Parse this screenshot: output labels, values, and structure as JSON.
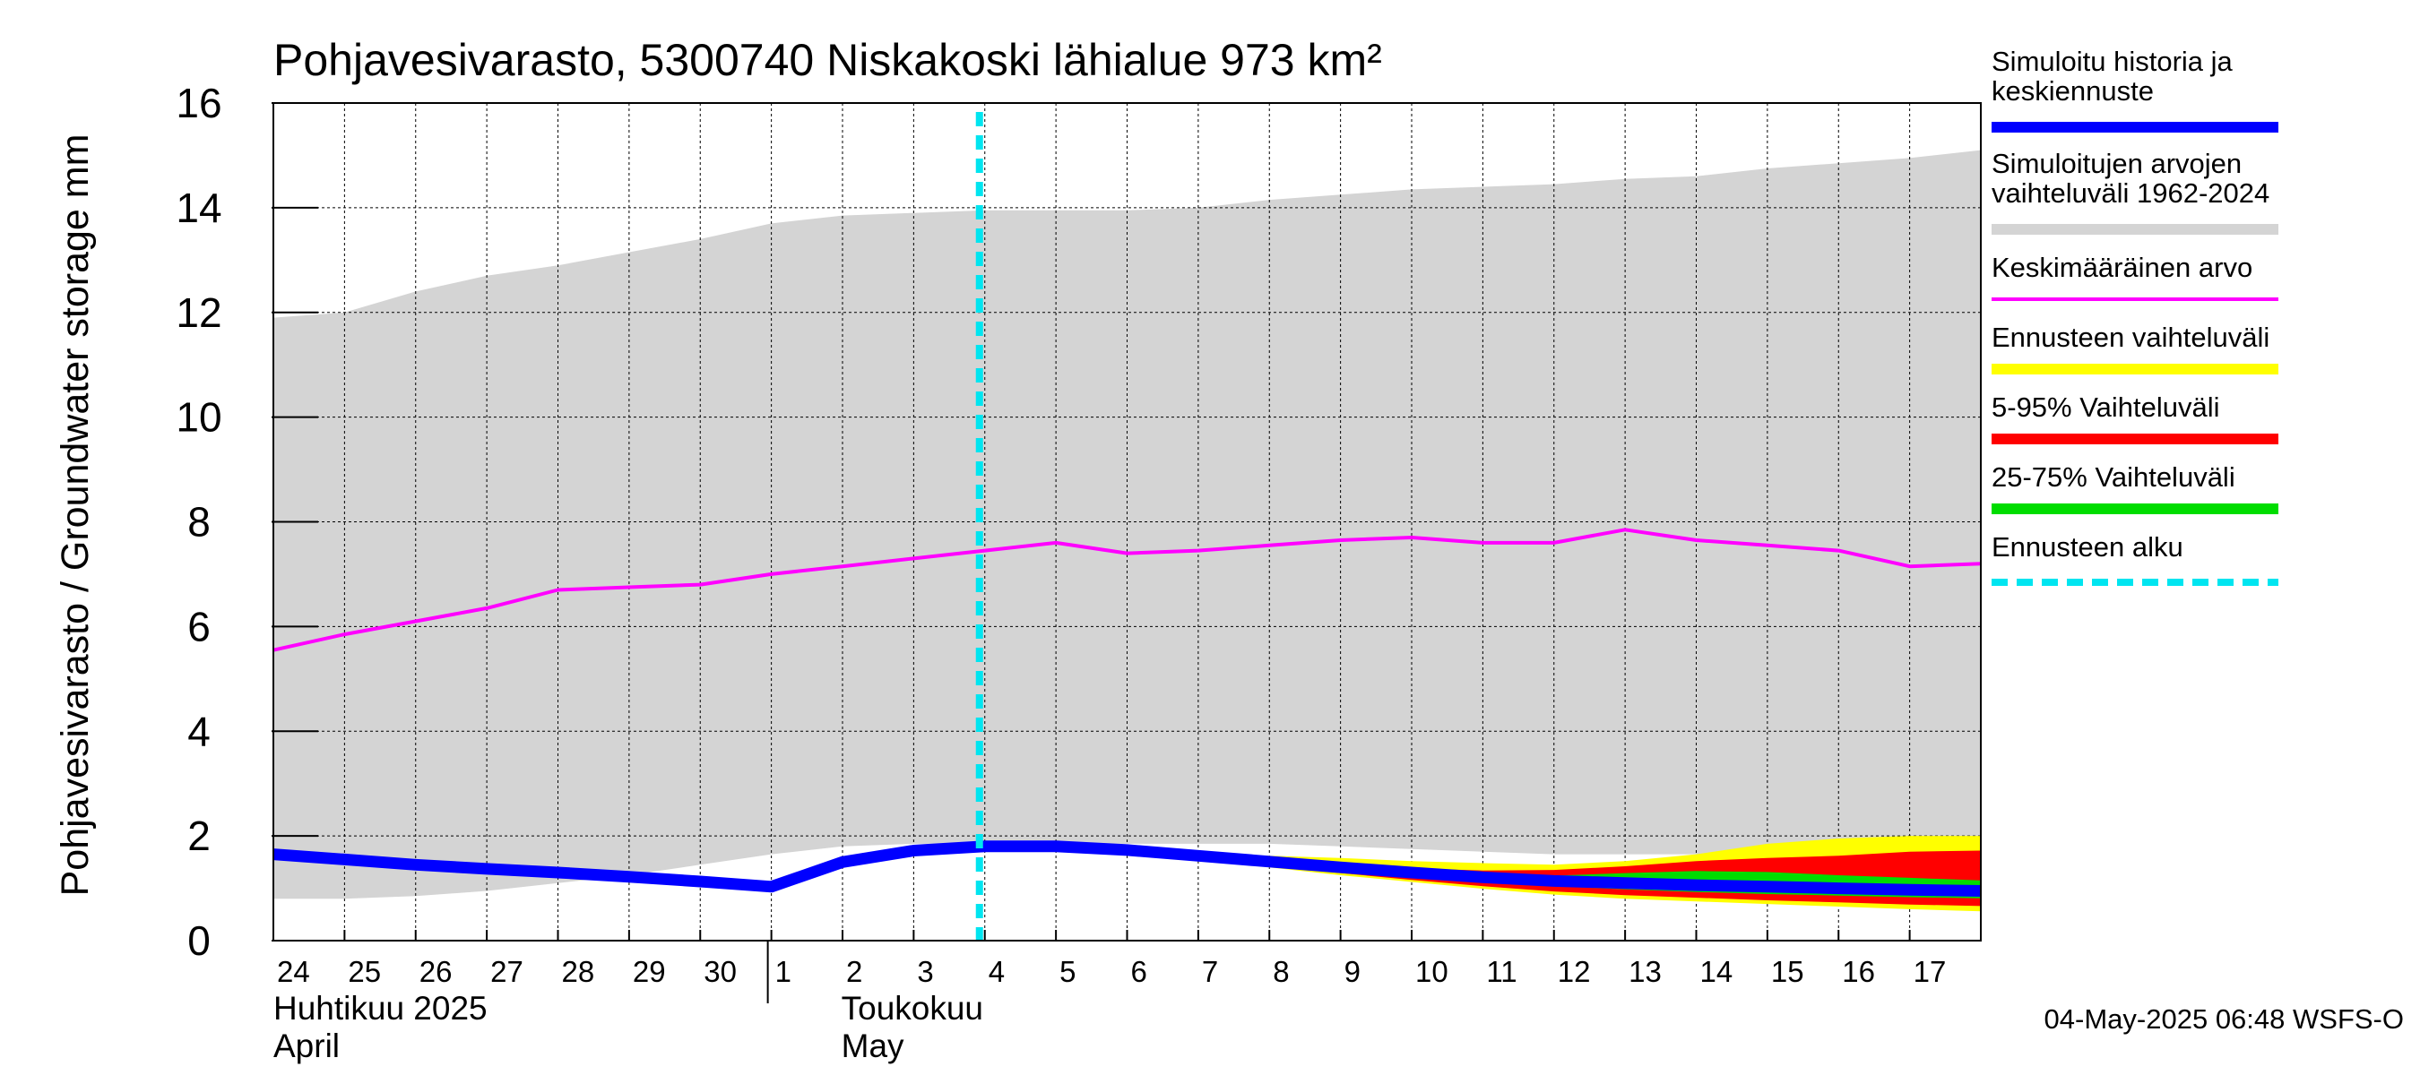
{
  "chart_data": {
    "type": "area",
    "title": "Pohjavesivarasto, 5300740 Niskakoski lähialue 973 km²",
    "ylabel": "Pohjavesivarasto / Groundwater storage   mm",
    "ylim": [
      0,
      16
    ],
    "yticks": [
      0,
      2,
      4,
      6,
      8,
      10,
      12,
      14,
      16
    ],
    "grid": true,
    "x_tick_labels": [
      "24",
      "25",
      "26",
      "27",
      "28",
      "29",
      "30",
      "1",
      "2",
      "3",
      "4",
      "5",
      "6",
      "7",
      "8",
      "9",
      "10",
      "11",
      "12",
      "13",
      "14",
      "15",
      "16",
      "17"
    ],
    "x_dates": [
      "2025-04-24",
      "2025-04-25",
      "2025-04-26",
      "2025-04-27",
      "2025-04-28",
      "2025-04-29",
      "2025-04-30",
      "2025-05-01",
      "2025-05-02",
      "2025-05-03",
      "2025-05-04",
      "2025-05-05",
      "2025-05-06",
      "2025-05-07",
      "2025-05-08",
      "2025-05-09",
      "2025-05-10",
      "2025-05-11",
      "2025-05-12",
      "2025-05-13",
      "2025-05-14",
      "2025-05-15",
      "2025-05-16",
      "2025-05-17"
    ],
    "month_labels": [
      {
        "fi": "Huhtikuu  2025",
        "en": "April",
        "start_date": "2025-04-24"
      },
      {
        "fi": "Toukokuu",
        "en": "May",
        "start_date": "2025-05-01"
      }
    ],
    "forecast_start": "2025-05-04",
    "series": [
      {
        "name": "Simuloitujen arvojen vaihteluväli 1962-2024",
        "kind": "band",
        "color": "#d4d4d4",
        "x": [
          "2025-04-24",
          "2025-04-25",
          "2025-04-26",
          "2025-04-27",
          "2025-04-28",
          "2025-04-29",
          "2025-04-30",
          "2025-05-01",
          "2025-05-02",
          "2025-05-03",
          "2025-05-04",
          "2025-05-05",
          "2025-05-06",
          "2025-05-07",
          "2025-05-08",
          "2025-05-09",
          "2025-05-10",
          "2025-05-11",
          "2025-05-12",
          "2025-05-13",
          "2025-05-14",
          "2025-05-15",
          "2025-05-16",
          "2025-05-17",
          "2025-05-18"
        ],
        "lower": [
          0.8,
          0.8,
          0.85,
          0.95,
          1.1,
          1.25,
          1.45,
          1.65,
          1.8,
          1.85,
          1.85,
          1.85,
          1.85,
          1.85,
          1.85,
          1.8,
          1.75,
          1.7,
          1.65,
          1.65,
          1.65,
          1.7,
          1.75,
          1.8,
          1.85
        ],
        "upper": [
          11.9,
          12.0,
          12.4,
          12.7,
          12.9,
          13.15,
          13.4,
          13.7,
          13.85,
          13.9,
          13.95,
          13.95,
          13.95,
          14.0,
          14.15,
          14.25,
          14.35,
          14.4,
          14.45,
          14.55,
          14.6,
          14.75,
          14.85,
          14.95,
          15.1
        ]
      },
      {
        "name": "Keskimääräinen arvo",
        "kind": "line",
        "color": "#ff00ff",
        "x": [
          "2025-04-24",
          "2025-04-25",
          "2025-04-26",
          "2025-04-27",
          "2025-04-28",
          "2025-04-29",
          "2025-04-30",
          "2025-05-01",
          "2025-05-02",
          "2025-05-03",
          "2025-05-04",
          "2025-05-05",
          "2025-05-06",
          "2025-05-07",
          "2025-05-08",
          "2025-05-09",
          "2025-05-10",
          "2025-05-11",
          "2025-05-12",
          "2025-05-13",
          "2025-05-14",
          "2025-05-15",
          "2025-05-16",
          "2025-05-17",
          "2025-05-18"
        ],
        "y": [
          5.55,
          5.85,
          6.1,
          6.35,
          6.7,
          6.75,
          6.8,
          7.0,
          7.15,
          7.3,
          7.45,
          7.6,
          7.4,
          7.45,
          7.55,
          7.65,
          7.7,
          7.6,
          7.6,
          7.85,
          7.65,
          7.55,
          7.45,
          7.15,
          7.2
        ]
      },
      {
        "name": "Ennusteen vaihteluväli",
        "kind": "band",
        "color": "#ffff00",
        "x": [
          "2025-05-04",
          "2025-05-05",
          "2025-05-06",
          "2025-05-07",
          "2025-05-08",
          "2025-05-09",
          "2025-05-10",
          "2025-05-11",
          "2025-05-12",
          "2025-05-13",
          "2025-05-14",
          "2025-05-15",
          "2025-05-16",
          "2025-05-17",
          "2025-05-18"
        ],
        "lower": [
          1.82,
          1.8,
          1.7,
          1.55,
          1.4,
          1.25,
          1.12,
          0.99,
          0.88,
          0.8,
          0.75,
          0.7,
          0.65,
          0.6,
          0.56
        ],
        "upper": [
          1.82,
          1.82,
          1.75,
          1.68,
          1.62,
          1.58,
          1.52,
          1.48,
          1.45,
          1.52,
          1.65,
          1.85,
          1.95,
          2.0,
          2.0
        ]
      },
      {
        "name": "5-95% Vaihteluväli",
        "kind": "band",
        "color": "#ff0000",
        "x": [
          "2025-05-04",
          "2025-05-05",
          "2025-05-06",
          "2025-05-07",
          "2025-05-08",
          "2025-05-09",
          "2025-05-10",
          "2025-05-11",
          "2025-05-12",
          "2025-05-13",
          "2025-05-14",
          "2025-05-15",
          "2025-05-16",
          "2025-05-17",
          "2025-05-18"
        ],
        "lower": [
          1.82,
          1.8,
          1.71,
          1.57,
          1.43,
          1.29,
          1.16,
          1.04,
          0.94,
          0.87,
          0.82,
          0.77,
          0.73,
          0.69,
          0.66
        ],
        "upper": [
          1.82,
          1.81,
          1.73,
          1.63,
          1.54,
          1.46,
          1.38,
          1.34,
          1.35,
          1.42,
          1.52,
          1.58,
          1.62,
          1.7,
          1.72
        ]
      },
      {
        "name": "25-75% Vaihteluväli",
        "kind": "band",
        "color": "#00dd00",
        "x": [
          "2025-05-04",
          "2025-05-05",
          "2025-05-06",
          "2025-05-07",
          "2025-05-08",
          "2025-05-09",
          "2025-05-10",
          "2025-05-11",
          "2025-05-12",
          "2025-05-13",
          "2025-05-14",
          "2025-05-15",
          "2025-05-16",
          "2025-05-17",
          "2025-05-18"
        ],
        "lower": [
          1.82,
          1.8,
          1.72,
          1.6,
          1.47,
          1.35,
          1.24,
          1.13,
          1.04,
          0.98,
          0.93,
          0.89,
          0.86,
          0.83,
          0.81
        ],
        "upper": [
          1.82,
          1.8,
          1.72,
          1.61,
          1.5,
          1.4,
          1.3,
          1.24,
          1.24,
          1.29,
          1.33,
          1.31,
          1.25,
          1.2,
          1.15
        ]
      },
      {
        "name": "Simuloitu historia ja keskiennuste",
        "kind": "line",
        "color": "#0000ff",
        "x": [
          "2025-04-24",
          "2025-04-25",
          "2025-04-26",
          "2025-04-27",
          "2025-04-28",
          "2025-04-29",
          "2025-04-30",
          "2025-05-01",
          "2025-05-02",
          "2025-05-03",
          "2025-05-04",
          "2025-05-05",
          "2025-05-06",
          "2025-05-07",
          "2025-05-08",
          "2025-05-09",
          "2025-05-10",
          "2025-05-11",
          "2025-05-12",
          "2025-05-13",
          "2025-05-14",
          "2025-05-15",
          "2025-05-16",
          "2025-05-17",
          "2025-05-18"
        ],
        "y": [
          1.65,
          1.55,
          1.45,
          1.37,
          1.3,
          1.22,
          1.13,
          1.03,
          1.5,
          1.72,
          1.8,
          1.8,
          1.73,
          1.62,
          1.51,
          1.4,
          1.3,
          1.21,
          1.14,
          1.1,
          1.06,
          1.03,
          1.0,
          0.97,
          0.95
        ]
      }
    ]
  },
  "legend": {
    "items": [
      {
        "label": "Simuloitu historia ja\nkeskiennuste",
        "color": "#0000ff",
        "style": "thick"
      },
      {
        "label": "Simuloitujen arvojen\nvaihteluväli 1962-2024",
        "color": "#d4d4d4",
        "style": "thick"
      },
      {
        "label": "Keskimääräinen arvo",
        "color": "#ff00ff",
        "style": "thin"
      },
      {
        "label": "Ennusteen vaihteluväli",
        "color": "#ffff00",
        "style": "thick"
      },
      {
        "label": "5-95% Vaihteluväli",
        "color": "#ff0000",
        "style": "thick"
      },
      {
        "label": "25-75% Vaihteluväli",
        "color": "#00dd00",
        "style": "thick"
      },
      {
        "label": "Ennusteen alku",
        "color": "#00e5f0",
        "style": "dashed"
      }
    ]
  },
  "footer": {
    "timestamp": "04-May-2025 06:48 WSFS-O"
  }
}
